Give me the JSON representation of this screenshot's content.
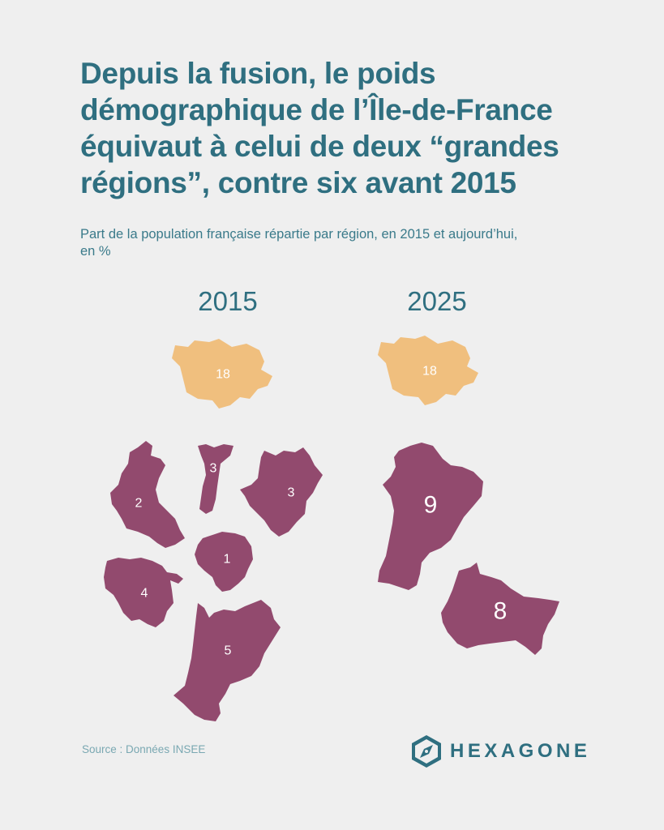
{
  "title": "Depuis la fusion, le poids démographique de l’Île-de-France équivaut à celui de deux “grandes régions”, contre six avant 2015",
  "subtitle": "Part de la population française répartie par région, en 2015 et aujourd’hui, en %",
  "source": "Source : Données INSEE",
  "logo": {
    "text": "HEXAGONE",
    "icon": "compass-hexagon-icon"
  },
  "colors": {
    "ile_de_france": "#f0bf7e",
    "other_regions": "#924a6e",
    "title": "#2f6f80",
    "background": "#efefef"
  },
  "maps": [
    {
      "year": "2015",
      "regions": [
        {
          "shape": "ile-de-france",
          "value": 18
        },
        {
          "shape": "pays-de-la-loire",
          "value": 2
        },
        {
          "shape": "thin-region",
          "value": 3
        },
        {
          "shape": "east-region",
          "value": 3
        },
        {
          "shape": "limousin",
          "value": 1
        },
        {
          "shape": "brittany",
          "value": 4
        },
        {
          "shape": "aquitaine",
          "value": 5
        }
      ]
    },
    {
      "year": "2025",
      "regions": [
        {
          "shape": "ile-de-france",
          "value": 18
        },
        {
          "shape": "nouvelle-aquitaine",
          "value": 9
        },
        {
          "shape": "grand-est",
          "value": 8
        }
      ]
    }
  ]
}
